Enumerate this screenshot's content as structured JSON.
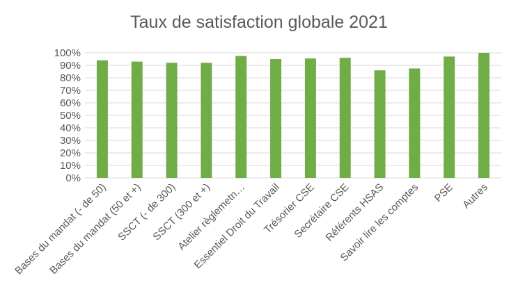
{
  "chart_data": {
    "type": "bar",
    "title": "Taux de satisfaction globale 2021",
    "xlabel": "",
    "ylabel": "",
    "categories": [
      "Bases du mandat (- de 50)",
      "Bases du mandat (50 et +)",
      "SSCT (- de 300)",
      "SSCT (300 et +)",
      "Atelier règlemetn…",
      "Essentiel Droit du Travail",
      "Trésorier CSE",
      "Secrétaire CSE",
      "Référents HSAS",
      "Savoir lire les comptes",
      "PSE",
      "Autres"
    ],
    "values": [
      0.94,
      0.93,
      0.92,
      0.92,
      0.975,
      0.95,
      0.955,
      0.96,
      0.86,
      0.875,
      0.97,
      1.0
    ],
    "ylim": [
      0,
      1
    ],
    "yticks": [
      {
        "value": 0,
        "label": "0%"
      },
      {
        "value": 0.1,
        "label": "10%"
      },
      {
        "value": 0.2,
        "label": "20%"
      },
      {
        "value": 0.3,
        "label": "30%"
      },
      {
        "value": 0.4,
        "label": "40%"
      },
      {
        "value": 0.5,
        "label": "50%"
      },
      {
        "value": 0.6,
        "label": "60%"
      },
      {
        "value": 0.7,
        "label": "70%"
      },
      {
        "value": 0.8,
        "label": "80%"
      },
      {
        "value": 0.9,
        "label": "90%"
      },
      {
        "value": 1.0,
        "label": "100%"
      }
    ],
    "grid": true,
    "legend": "none",
    "colors": {
      "bar": "#70AD47",
      "grid": "#D9D9D9",
      "text": "#595959"
    }
  }
}
